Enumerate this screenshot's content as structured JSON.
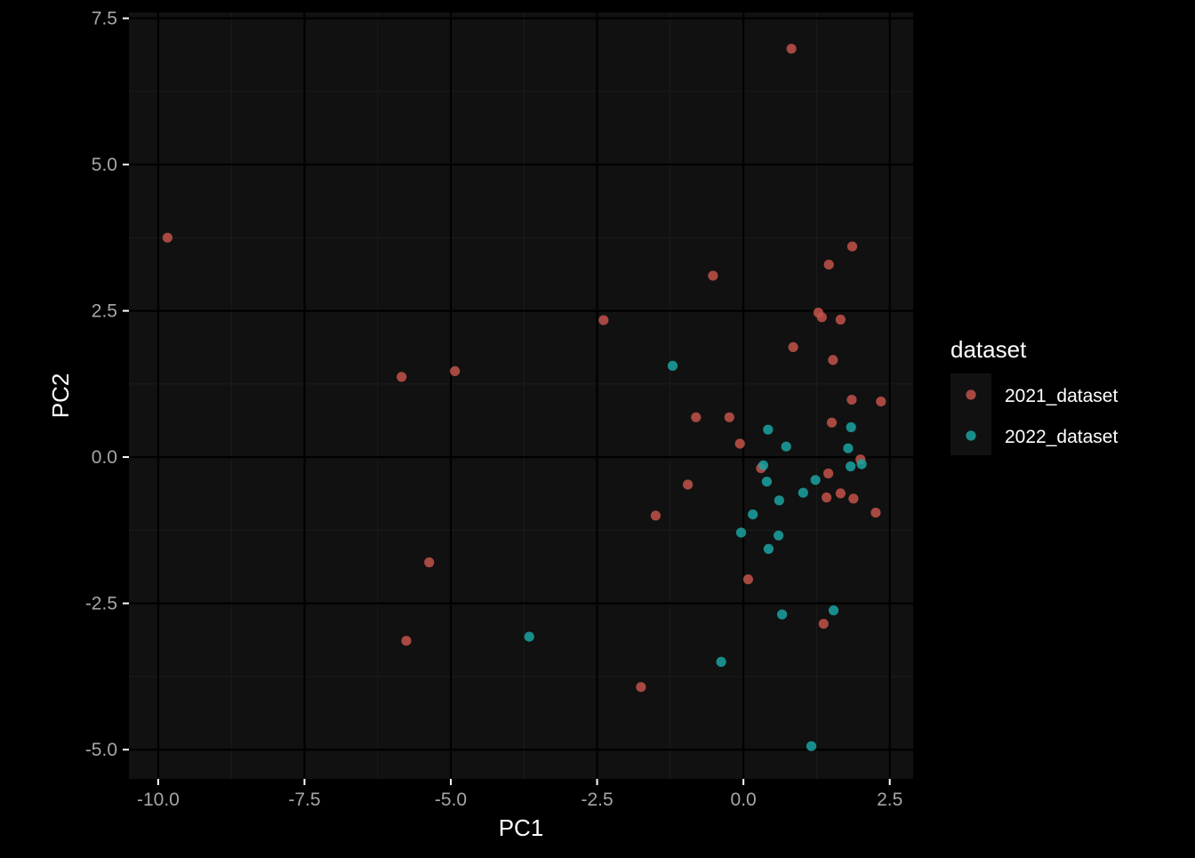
{
  "chart_data": {
    "type": "scatter",
    "title": "",
    "xlabel": "PC1",
    "ylabel": "PC2",
    "xlim": [
      -10.5,
      2.9
    ],
    "ylim": [
      -5.5,
      7.6
    ],
    "x_ticks": [
      -10.0,
      -7.5,
      -5.0,
      -2.5,
      0.0,
      2.5
    ],
    "x_tick_labels": [
      "-10.0",
      "-7.5",
      "-5.0",
      "-2.5",
      "0.0",
      "2.5"
    ],
    "y_ticks": [
      -5.0,
      -2.5,
      0.0,
      2.5,
      5.0,
      7.5
    ],
    "y_tick_labels": [
      "-5.0",
      "-2.5",
      "0.0",
      "2.5",
      "5.0",
      "7.5"
    ],
    "grid": true,
    "legend": {
      "title": "dataset",
      "placement": "right"
    },
    "colors": {
      "panel": "#111111",
      "grid_major": "#000000",
      "grid_minor": "#1c1c1c",
      "text": "#ffffff",
      "tick_text": "#a6a6a6"
    },
    "series": [
      {
        "name": "2021_dataset",
        "color": "#c2524a",
        "x": [
          0.82,
          -9.84,
          1.86,
          -0.52,
          1.46,
          1.28,
          1.34,
          1.66,
          0.85,
          1.53,
          -2.39,
          -5.84,
          -4.93,
          -0.81,
          -0.24,
          1.85,
          2.35,
          1.51,
          -0.06,
          2.0,
          0.3,
          1.45,
          -0.95,
          1.42,
          1.88,
          1.66,
          2.26,
          -1.5,
          0.08,
          -5.37,
          1.37,
          -5.76,
          -1.75
        ],
        "y": [
          6.98,
          3.75,
          3.6,
          3.1,
          3.29,
          2.47,
          2.39,
          2.35,
          1.88,
          1.66,
          2.34,
          1.37,
          1.47,
          0.68,
          0.68,
          0.98,
          0.95,
          0.59,
          0.23,
          -0.04,
          -0.19,
          -0.28,
          -0.47,
          -0.69,
          -0.71,
          -0.62,
          -0.95,
          -1.0,
          -2.09,
          -1.8,
          -2.85,
          -3.14,
          -3.93
        ]
      },
      {
        "name": "2022_dataset",
        "color": "#1ba3a1",
        "x": [
          -1.21,
          0.42,
          0.73,
          1.84,
          1.79,
          2.02,
          1.83,
          0.34,
          0.4,
          1.23,
          1.02,
          0.61,
          0.16,
          -0.04,
          0.6,
          0.43,
          1.54,
          0.66,
          -3.66,
          -0.38,
          1.16
        ],
        "y": [
          1.56,
          0.47,
          0.18,
          0.51,
          0.15,
          -0.12,
          -0.16,
          -0.14,
          -0.42,
          -0.39,
          -0.61,
          -0.74,
          -0.98,
          -1.29,
          -1.34,
          -1.57,
          -2.62,
          -2.69,
          -3.07,
          -3.5,
          -4.94
        ]
      }
    ]
  }
}
